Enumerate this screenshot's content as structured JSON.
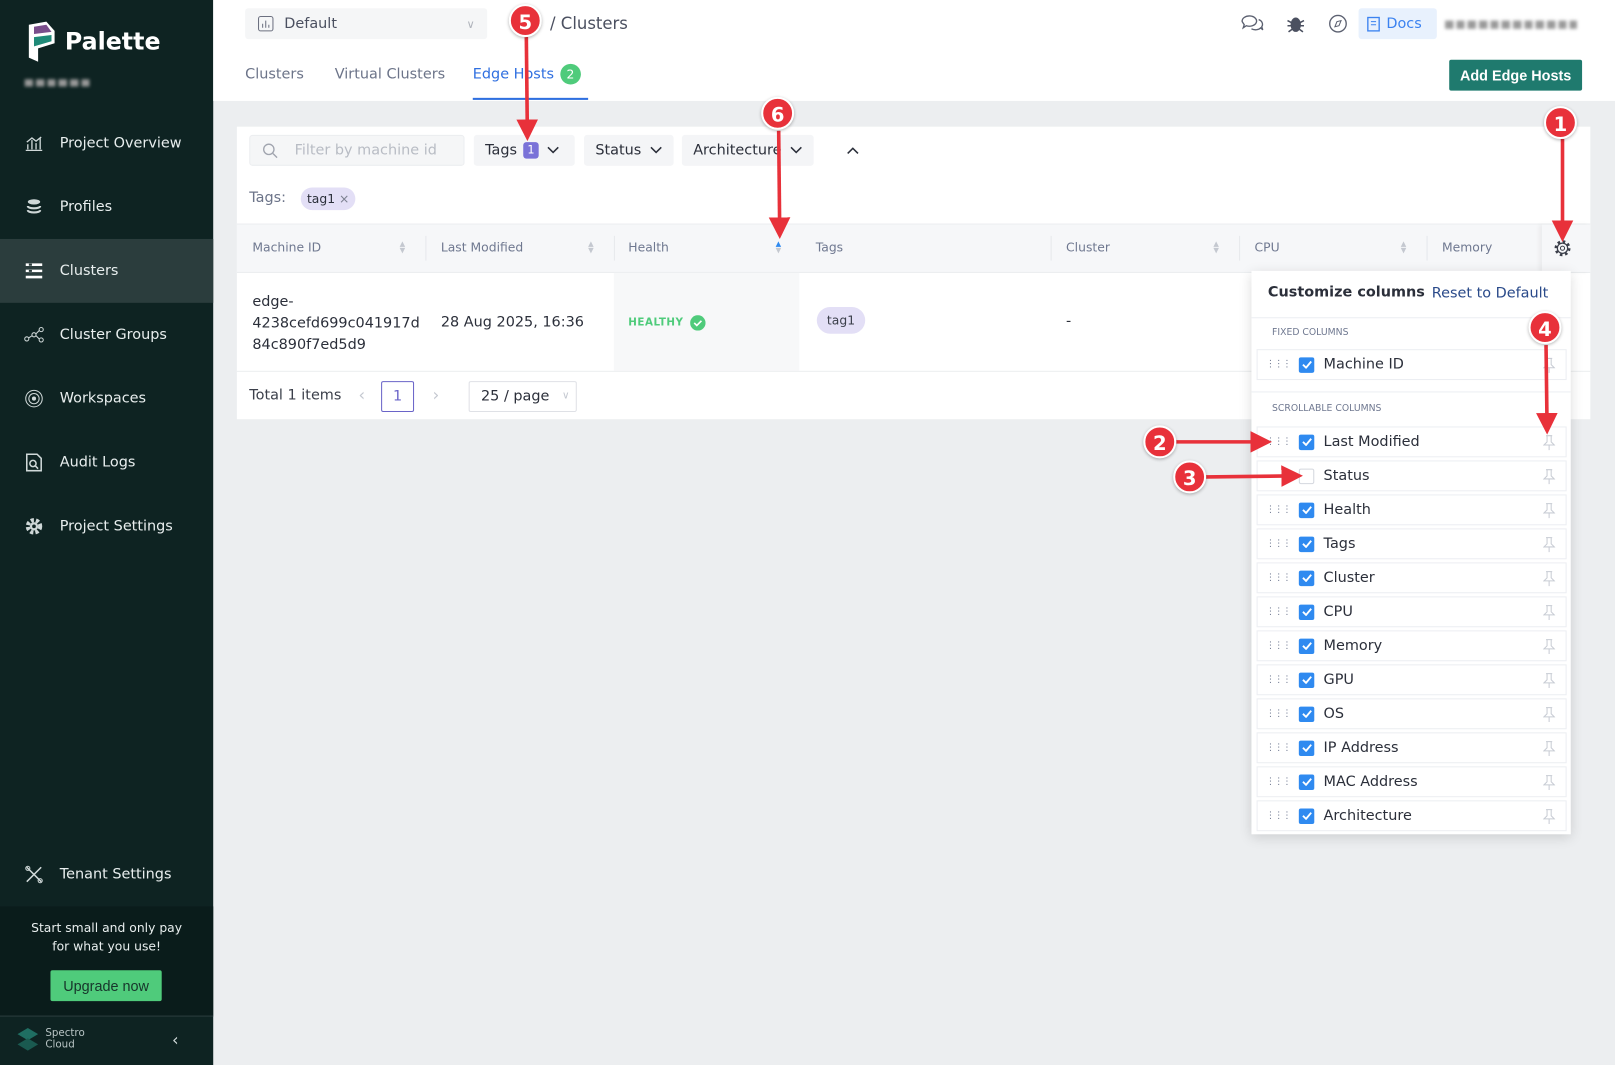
{
  "sidebar": {
    "brand": "Palette",
    "items": [
      {
        "label": "Project Overview",
        "icon": "chart-icon"
      },
      {
        "label": "Profiles",
        "icon": "stack-icon"
      },
      {
        "label": "Clusters",
        "icon": "clusters-icon",
        "active": true
      },
      {
        "label": "Cluster Groups",
        "icon": "cluster-groups-icon"
      },
      {
        "label": "Workspaces",
        "icon": "workspaces-icon"
      },
      {
        "label": "Audit Logs",
        "icon": "audit-icon"
      },
      {
        "label": "Project Settings",
        "icon": "gear-icon"
      }
    ],
    "tenant_settings": "Tenant Settings",
    "promo_line1": "Start small and only pay",
    "promo_line2": "for what you use!",
    "upgrade_label": "Upgrade now",
    "footer_brand_1": "Spectro",
    "footer_brand_2": "Cloud"
  },
  "header": {
    "project": "Default",
    "breadcrumb": "/ Clusters",
    "docs_label": "Docs",
    "tabs": [
      {
        "label": "Clusters"
      },
      {
        "label": "Virtual Clusters"
      },
      {
        "label": "Edge Hosts",
        "badge": "2",
        "active": true
      }
    ],
    "add_button": "Add Edge Hosts"
  },
  "filters": {
    "search_placeholder": "Filter by machine id",
    "tags_label": "Tags",
    "tags_count": "1",
    "status_label": "Status",
    "architecture_label": "Architecture",
    "applied_label": "Tags:",
    "applied_chip": "tag1"
  },
  "table": {
    "columns": [
      "Machine ID",
      "Last Modified",
      "Health",
      "Tags",
      "Cluster",
      "CPU",
      "Memory"
    ],
    "rows": [
      {
        "machine_id_1": "edge-",
        "machine_id_2": "4238cefd699c041917d",
        "machine_id_3": "84c890f7ed5d9",
        "last_modified": "28 Aug 2025, 16:36",
        "health": "HEALTHY",
        "tag": "tag1",
        "cluster": "-"
      }
    ],
    "total": "Total 1 items",
    "page": "1",
    "page_size": "25 / page"
  },
  "customize": {
    "title": "Customize columns",
    "reset": "Reset to Default",
    "fixed_label": "FIXED COLUMNS",
    "fixed": [
      {
        "label": "Machine ID",
        "checked": true
      }
    ],
    "scrollable_label": "SCROLLABLE COLUMNS",
    "scrollable": [
      {
        "label": "Last Modified",
        "checked": true
      },
      {
        "label": "Status",
        "checked": false
      },
      {
        "label": "Health",
        "checked": true
      },
      {
        "label": "Tags",
        "checked": true
      },
      {
        "label": "Cluster",
        "checked": true
      },
      {
        "label": "CPU",
        "checked": true
      },
      {
        "label": "Memory",
        "checked": true
      },
      {
        "label": "GPU",
        "checked": true
      },
      {
        "label": "OS",
        "checked": true
      },
      {
        "label": "IP Address",
        "checked": true
      },
      {
        "label": "MAC Address",
        "checked": true
      },
      {
        "label": "Architecture",
        "checked": true
      }
    ]
  },
  "annotations": [
    "1",
    "2",
    "3",
    "4",
    "5",
    "6"
  ],
  "colors": {
    "accent": "#2f6fe0",
    "brand": "#1f7a6e",
    "sidebar": "#0e2322",
    "success": "#4fcb7b",
    "annotation": "#e8313a"
  }
}
